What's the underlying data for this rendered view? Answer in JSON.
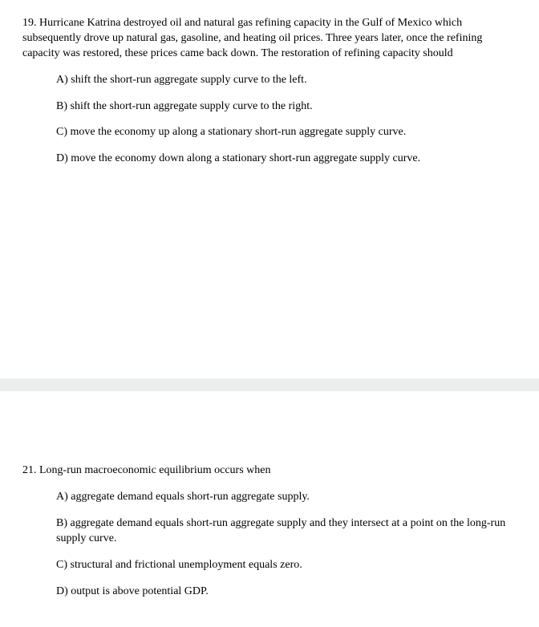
{
  "q19": {
    "stem": "19. Hurricane Katrina destroyed oil and natural gas refining capacity in the Gulf of Mexico which subsequently drove up natural gas, gasoline, and heating oil prices. Three years later, once the refining capacity was restored, these prices came back down. The restoration of refining capacity should",
    "options": {
      "a": "A) shift the short-run aggregate supply curve to the left.",
      "b": "B) shift the short-run aggregate supply curve to the right.",
      "c": "C) move the economy up along a stationary short-run aggregate supply curve.",
      "d": "D) move the economy down along a stationary short-run aggregate supply curve."
    }
  },
  "q21": {
    "stem": "21. Long-run macroeconomic equilibrium occurs when",
    "options": {
      "a": "A) aggregate demand equals short-run aggregate supply.",
      "b": "B) aggregate demand equals short-run aggregate supply and they intersect at a point on the long-run supply curve.",
      "c": "C) structural and frictional unemployment equals zero.",
      "d": "D) output is above potential GDP."
    }
  }
}
